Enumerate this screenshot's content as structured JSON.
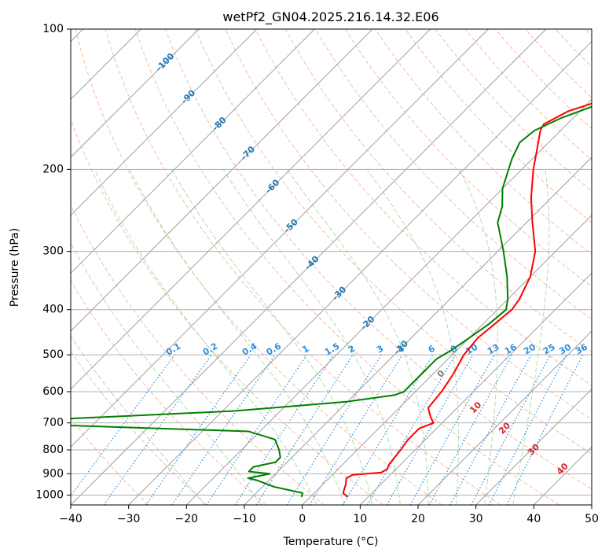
{
  "chart_data": {
    "type": "line",
    "title": "wetPf2_GN04.2025.216.14.32.E06",
    "xlabel": "Temperature (°C)",
    "ylabel": "Pressure (hPa)",
    "xlim": [
      -40,
      50
    ],
    "ylim": [
      1050,
      100
    ],
    "y_scale": "log",
    "skew": 45,
    "x_ticks": [
      -40,
      -30,
      -20,
      -10,
      0,
      10,
      20,
      30,
      40,
      50
    ],
    "y_ticks": [
      100,
      200,
      300,
      400,
      500,
      600,
      700,
      800,
      900,
      1000
    ],
    "grid": true,
    "colors": {
      "temperature": "#ff0000",
      "dewpoint": "#008000",
      "isotherm": "#a0a0a0",
      "dry_adiabat": "#f4a582",
      "moist_adiabat": "#a6d9a6",
      "mixing_ratio": "#2a8ee0",
      "isotherm_label": "#1f77b4",
      "moist_label": "#d62728",
      "zero_label": "#808080"
    },
    "series": [
      {
        "key": "temperature",
        "values": [
          [
            1010,
            6.5
          ],
          [
            990,
            5.0
          ],
          [
            950,
            4.0
          ],
          [
            920,
            3.0
          ],
          [
            905,
            3.5
          ],
          [
            895,
            8.0
          ],
          [
            880,
            8.5
          ],
          [
            860,
            8.0
          ],
          [
            800,
            7.5
          ],
          [
            760,
            7.0
          ],
          [
            720,
            7.0
          ],
          [
            700,
            8.5
          ],
          [
            680,
            7.0
          ],
          [
            650,
            5.0
          ],
          [
            600,
            4.5
          ],
          [
            550,
            3.5
          ],
          [
            500,
            2.0
          ],
          [
            460,
            1.5
          ],
          [
            430,
            2.0
          ],
          [
            400,
            2.5
          ],
          [
            380,
            2.0
          ],
          [
            340,
            0.0
          ],
          [
            300,
            -3.5
          ],
          [
            260,
            -9.0
          ],
          [
            230,
            -13.5
          ],
          [
            200,
            -18.0
          ],
          [
            180,
            -21.0
          ],
          [
            165,
            -23.5
          ],
          [
            160,
            -24.0
          ],
          [
            150,
            -22.0
          ],
          [
            140,
            -17.0
          ],
          [
            132,
            -11.0
          ],
          [
            120,
            -11.0
          ],
          [
            110,
            -13.0
          ],
          [
            100,
            -15.0
          ]
        ]
      },
      {
        "key": "dewpoint",
        "values": [
          [
            1010,
            -1.5
          ],
          [
            990,
            -2.0
          ],
          [
            960,
            -8.0
          ],
          [
            930,
            -12.0
          ],
          [
            920,
            -14.0
          ],
          [
            900,
            -11.0
          ],
          [
            890,
            -15.0
          ],
          [
            870,
            -15.0
          ],
          [
            850,
            -12.0
          ],
          [
            830,
            -12.0
          ],
          [
            800,
            -13.5
          ],
          [
            760,
            -16.0
          ],
          [
            730,
            -22.0
          ],
          [
            705,
            -60.0
          ],
          [
            700,
            -70.0
          ],
          [
            690,
            -60.0
          ],
          [
            660,
            -28.0
          ],
          [
            650,
            -22.0
          ],
          [
            630,
            -10.0
          ],
          [
            610,
            -3.0
          ],
          [
            600,
            -2.0
          ],
          [
            550,
            -2.0
          ],
          [
            510,
            -2.0
          ],
          [
            490,
            -1.0
          ],
          [
            460,
            0.0
          ],
          [
            430,
            1.0
          ],
          [
            400,
            1.5
          ],
          [
            380,
            0.0
          ],
          [
            340,
            -4.0
          ],
          [
            300,
            -9.0
          ],
          [
            260,
            -15.0
          ],
          [
            240,
            -17.0
          ],
          [
            220,
            -20.0
          ],
          [
            190,
            -23.5
          ],
          [
            175,
            -25.0
          ],
          [
            165,
            -24.5
          ],
          [
            155,
            -22.0
          ],
          [
            145,
            -18.0
          ],
          [
            135,
            -14.0
          ],
          [
            125,
            -11.0
          ],
          [
            115,
            -11.5
          ],
          [
            105,
            -12.5
          ],
          [
            100,
            -13.0
          ]
        ]
      }
    ],
    "isotherm_labels": [
      -100,
      -90,
      -80,
      -70,
      -60,
      -50,
      -40,
      -30,
      -20,
      -10
    ],
    "mixing_ratio_labels": [
      "0.1",
      "0.2",
      "0.4",
      "0.6",
      "1",
      "1.5",
      "2",
      "3",
      "4",
      "6",
      "8",
      "10",
      "13",
      "16",
      "20",
      "25",
      "30",
      "36"
    ],
    "moist_adiabat_labels": [
      "0",
      "10",
      "20",
      "30",
      "40"
    ]
  }
}
